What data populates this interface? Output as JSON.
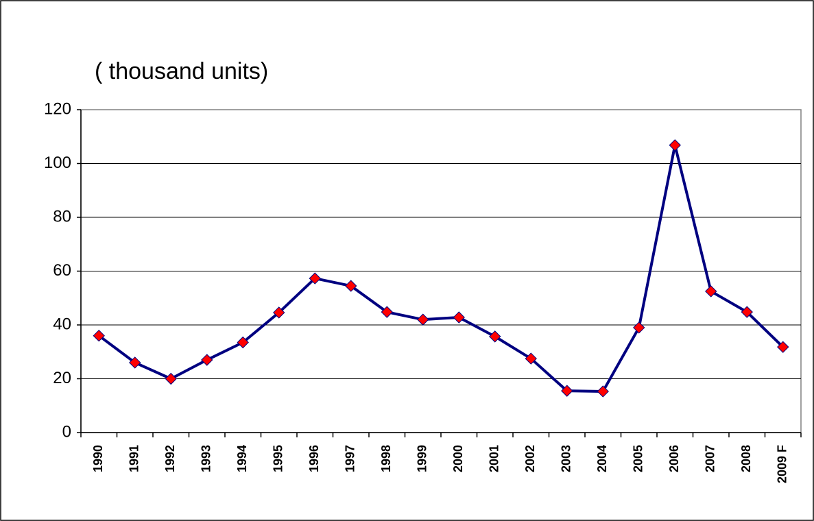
{
  "chart_data": {
    "type": "line",
    "annotation": "( thousand units)",
    "categories": [
      "1990",
      "1991",
      "1992",
      "1993",
      "1994",
      "1995",
      "1996",
      "1997",
      "1998",
      "1999",
      "2000",
      "2001",
      "2002",
      "2003",
      "2004",
      "2005",
      "2006",
      "2007",
      "2008",
      "2009 F"
    ],
    "series": [
      {
        "color": "#000080",
        "marker_color": "#ff0000",
        "values": [
          36,
          26,
          20,
          27,
          33.5,
          44.6,
          57.3,
          54.5,
          44.8,
          42,
          42.8,
          35.7,
          27.5,
          15.5,
          15.3,
          39,
          106.8,
          52.5,
          44.8,
          31.8
        ]
      }
    ],
    "ylim": [
      0,
      120
    ],
    "yticks": [
      0,
      20,
      40,
      60,
      80,
      100,
      120
    ],
    "grid": true
  }
}
